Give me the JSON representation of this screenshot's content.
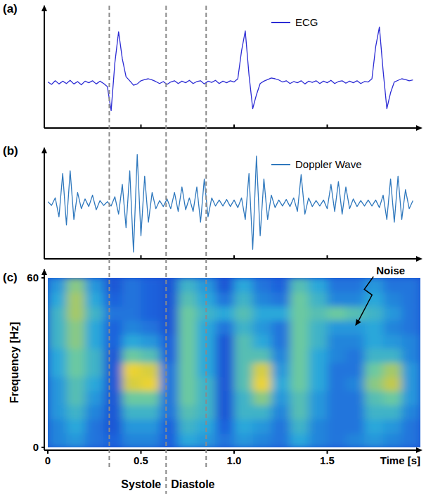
{
  "chart_data": [
    {
      "type": "line",
      "label": "(a)",
      "x": [
        0,
        0.02,
        0.04,
        0.06,
        0.08,
        0.1,
        0.12,
        0.14,
        0.16,
        0.18,
        0.2,
        0.22,
        0.24,
        0.26,
        0.28,
        0.3,
        0.32,
        0.34,
        0.36,
        0.38,
        0.4,
        0.42,
        0.44,
        0.46,
        0.48,
        0.5,
        0.52,
        0.54,
        0.56,
        0.58,
        0.6,
        0.62,
        0.64,
        0.66,
        0.68,
        0.7,
        0.72,
        0.74,
        0.76,
        0.78,
        0.8,
        0.82,
        0.84,
        0.86,
        0.88,
        0.9,
        0.92,
        0.94,
        0.96,
        0.98,
        1,
        1.02,
        1.04,
        1.06,
        1.08,
        1.1,
        1.12,
        1.14,
        1.16,
        1.18,
        1.2,
        1.22,
        1.24,
        1.26,
        1.28,
        1.3,
        1.32,
        1.34,
        1.36,
        1.38,
        1.4,
        1.42,
        1.44,
        1.46,
        1.48,
        1.5,
        1.52,
        1.54,
        1.56,
        1.58,
        1.6,
        1.62,
        1.64,
        1.66,
        1.68,
        1.7,
        1.72,
        1.74,
        1.76,
        1.78,
        1.8,
        1.82,
        1.84,
        1.86,
        1.88,
        1.9,
        1.92,
        1.94,
        1.96
      ],
      "xlim": [
        0,
        2
      ],
      "xticks": [
        0.5,
        1,
        1.5
      ],
      "ylim": [
        -1.1,
        1.9
      ],
      "tick_labels": false,
      "legend": "top-right",
      "series": [
        {
          "name": "ECG",
          "color": "#2c2cd4",
          "values": [
            0.02,
            -0.04,
            0.05,
            -0.03,
            0.04,
            -0.02,
            0.06,
            -0.03,
            0.03,
            -0.05,
            0.04,
            0,
            0.05,
            -0.03,
            0.04,
            -0.02,
            -0.1,
            -0.7,
            0.5,
            1.28,
            0.6,
            0.15,
            0.05,
            -0.06,
            -0.03,
            0.05,
            0.08,
            0.1,
            0.07,
            0.03,
            -0.02,
            0.03,
            -0.04,
            0.02,
            0.05,
            -0.02,
            0.04,
            0,
            0.06,
            -0.02,
            0.03,
            0.05,
            -0.03,
            0.04,
            0.01,
            0.06,
            -0.02,
            0.04,
            0,
            0.05,
            0.02,
            0.1,
            0.8,
            1.3,
            0.2,
            -0.65,
            -0.3,
            -0.02,
            0.04,
            0.08,
            0.12,
            0.1,
            0.07,
            0.02,
            0.05,
            -0.02,
            0.03,
            0,
            0.05,
            -0.03,
            0.04,
            0.01,
            0.05,
            -0.02,
            0.04,
            0,
            0.06,
            -0.02,
            0.03,
            0.05,
            -0.01,
            0.04,
            0,
            0.05,
            -0.02,
            0.03,
            0.02,
            0.1,
            0.9,
            1.4,
            0.3,
            -0.65,
            -0.25,
            0.02,
            0.06,
            0.1,
            0.08,
            0.05,
            0.07
          ]
        }
      ]
    },
    {
      "type": "line",
      "label": "(b)",
      "x": [
        0,
        0.02,
        0.04,
        0.06,
        0.08,
        0.1,
        0.12,
        0.14,
        0.16,
        0.18,
        0.2,
        0.22,
        0.24,
        0.26,
        0.28,
        0.3,
        0.32,
        0.34,
        0.36,
        0.38,
        0.4,
        0.42,
        0.44,
        0.46,
        0.48,
        0.5,
        0.52,
        0.54,
        0.56,
        0.58,
        0.6,
        0.62,
        0.64,
        0.66,
        0.68,
        0.7,
        0.72,
        0.74,
        0.76,
        0.78,
        0.8,
        0.82,
        0.84,
        0.86,
        0.88,
        0.9,
        0.92,
        0.94,
        0.96,
        0.98,
        1,
        1.02,
        1.04,
        1.06,
        1.08,
        1.1,
        1.12,
        1.14,
        1.16,
        1.18,
        1.2,
        1.22,
        1.24,
        1.26,
        1.28,
        1.3,
        1.32,
        1.34,
        1.36,
        1.38,
        1.4,
        1.42,
        1.44,
        1.46,
        1.48,
        1.5,
        1.52,
        1.54,
        1.56,
        1.58,
        1.6,
        1.62,
        1.64,
        1.66,
        1.68,
        1.7,
        1.72,
        1.74,
        1.76,
        1.78,
        1.8,
        1.82,
        1.84,
        1.86,
        1.88,
        1.9,
        1.92,
        1.94,
        1.96
      ],
      "xlim": [
        0,
        2
      ],
      "xticks": [
        0.5,
        1,
        1.5
      ],
      "ylim": [
        -1,
        1
      ],
      "tick_labels": false,
      "legend": "top-right",
      "series": [
        {
          "name": "Doppler Wave",
          "color": "#2f78bd",
          "values": [
            0.03,
            -0.04,
            0.1,
            -0.25,
            0.55,
            -0.4,
            0.6,
            -0.3,
            0.2,
            -0.1,
            0.08,
            -0.06,
            0.15,
            -0.12,
            0.05,
            -0.04,
            0.03,
            -0.05,
            0.12,
            -0.2,
            0.35,
            -0.45,
            0.6,
            -0.9,
            0.9,
            -0.6,
            0.5,
            -0.35,
            0.2,
            -0.1,
            0.05,
            -0.06,
            0.08,
            -0.1,
            0.2,
            -0.15,
            0.3,
            -0.12,
            0.1,
            -0.15,
            0.3,
            -0.35,
            0.45,
            -0.25,
            0.1,
            -0.05,
            0.06,
            -0.05,
            0.07,
            -0.06,
            0.06,
            -0.08,
            0.1,
            -0.3,
            0.55,
            -0.85,
            0.87,
            -0.6,
            0.45,
            -0.3,
            0.15,
            -0.08,
            0.06,
            -0.05,
            0.07,
            -0.06,
            0.1,
            -0.15,
            0.53,
            -0.2,
            0.1,
            -0.06,
            0.05,
            -0.05,
            0.06,
            -0.1,
            0.35,
            -0.15,
            0.4,
            -0.2,
            0.3,
            -0.1,
            0.08,
            -0.06,
            0.05,
            -0.05,
            0.06,
            -0.05,
            0.06,
            -0.08,
            0.15,
            -0.3,
            0.45,
            -0.35,
            0.5,
            -0.3,
            0.25,
            -0.1,
            0.05
          ]
        }
      ]
    },
    {
      "type": "heatmap",
      "label": "(c)",
      "x": [
        0,
        0.1,
        0.2,
        0.3,
        0.4,
        0.5,
        0.6,
        0.7,
        0.8,
        0.9,
        1,
        1.1,
        1.2,
        1.3,
        1.4,
        1.5,
        1.6,
        1.7,
        1.8,
        1.9,
        2
      ],
      "y": [
        0,
        5,
        10,
        15,
        20,
        25,
        30,
        35,
        40,
        45,
        50,
        55,
        60
      ],
      "cells": [
        [
          0.35,
          0.35,
          0.4,
          0.4,
          0.4,
          0.45,
          0.45,
          0.5,
          0.5,
          0.5,
          0.45,
          0.4
        ],
        [
          0.4,
          0.45,
          0.5,
          0.55,
          0.55,
          0.6,
          0.6,
          0.65,
          0.65,
          0.7,
          0.7,
          0.65
        ],
        [
          0.3,
          0.3,
          0.35,
          0.4,
          0.45,
          0.5,
          0.5,
          0.45,
          0.45,
          0.5,
          0.45,
          0.4
        ],
        [
          0.25,
          0.2,
          0.2,
          0.2,
          0.2,
          0.2,
          0.2,
          0.25,
          0.25,
          0.3,
          0.25,
          0.2
        ],
        [
          0.35,
          0.4,
          0.5,
          0.6,
          0.8,
          0.85,
          0.6,
          0.45,
          0.35,
          0.3,
          0.3,
          0.3
        ],
        [
          0.35,
          0.4,
          0.5,
          0.6,
          0.85,
          0.8,
          0.55,
          0.4,
          0.3,
          0.25,
          0.25,
          0.25
        ],
        [
          0.25,
          0.25,
          0.3,
          0.3,
          0.3,
          0.3,
          0.25,
          0.25,
          0.2,
          0.2,
          0.2,
          0.2
        ],
        [
          0.45,
          0.5,
          0.55,
          0.6,
          0.6,
          0.6,
          0.6,
          0.6,
          0.6,
          0.6,
          0.55,
          0.5
        ],
        [
          0.4,
          0.45,
          0.5,
          0.5,
          0.5,
          0.45,
          0.45,
          0.45,
          0.45,
          0.5,
          0.45,
          0.4
        ],
        [
          0.3,
          0.25,
          0.2,
          0.2,
          0.2,
          0.2,
          0.2,
          0.2,
          0.3,
          0.45,
          0.3,
          0.2
        ],
        [
          0.4,
          0.45,
          0.5,
          0.5,
          0.55,
          0.55,
          0.55,
          0.55,
          0.5,
          0.55,
          0.5,
          0.45
        ],
        [
          0.35,
          0.4,
          0.5,
          0.65,
          0.85,
          0.8,
          0.55,
          0.45,
          0.4,
          0.45,
          0.35,
          0.3
        ],
        [
          0.3,
          0.3,
          0.35,
          0.4,
          0.45,
          0.4,
          0.35,
          0.3,
          0.3,
          0.45,
          0.3,
          0.25
        ],
        [
          0.45,
          0.5,
          0.55,
          0.55,
          0.6,
          0.6,
          0.6,
          0.6,
          0.6,
          0.6,
          0.6,
          0.55
        ],
        [
          0.35,
          0.35,
          0.4,
          0.4,
          0.45,
          0.45,
          0.45,
          0.5,
          0.5,
          0.55,
          0.5,
          0.45
        ],
        [
          0.3,
          0.3,
          0.3,
          0.3,
          0.3,
          0.3,
          0.35,
          0.35,
          0.4,
          0.6,
          0.35,
          0.3
        ],
        [
          0.35,
          0.3,
          0.3,
          0.3,
          0.35,
          0.3,
          0.3,
          0.35,
          0.4,
          0.55,
          0.35,
          0.3
        ],
        [
          0.4,
          0.45,
          0.5,
          0.55,
          0.65,
          0.6,
          0.5,
          0.45,
          0.45,
          0.5,
          0.45,
          0.4
        ],
        [
          0.35,
          0.4,
          0.5,
          0.6,
          0.75,
          0.7,
          0.5,
          0.4,
          0.35,
          0.4,
          0.35,
          0.3
        ],
        [
          0.3,
          0.3,
          0.35,
          0.4,
          0.4,
          0.4,
          0.35,
          0.35,
          0.3,
          0.3,
          0.3,
          0.3
        ]
      ],
      "color_range": [
        0,
        1
      ],
      "xlim": [
        0,
        2
      ],
      "ylim": [
        0,
        60
      ],
      "xticks": [
        0,
        0.5,
        {
          "value": 1,
          "label": "1.0"
        },
        1.5
      ],
      "yticks": [
        0,
        60
      ],
      "xlabel": "Time [s]",
      "ylabel": "Frequency [Hz]",
      "annotations": [
        {
          "text": "Noise",
          "x": 1.65,
          "y": 43
        }
      ]
    }
  ],
  "phase_lines": [
    0.33,
    0.635,
    0.85
  ],
  "phase_labels": [
    "Systole",
    "Diastole"
  ]
}
